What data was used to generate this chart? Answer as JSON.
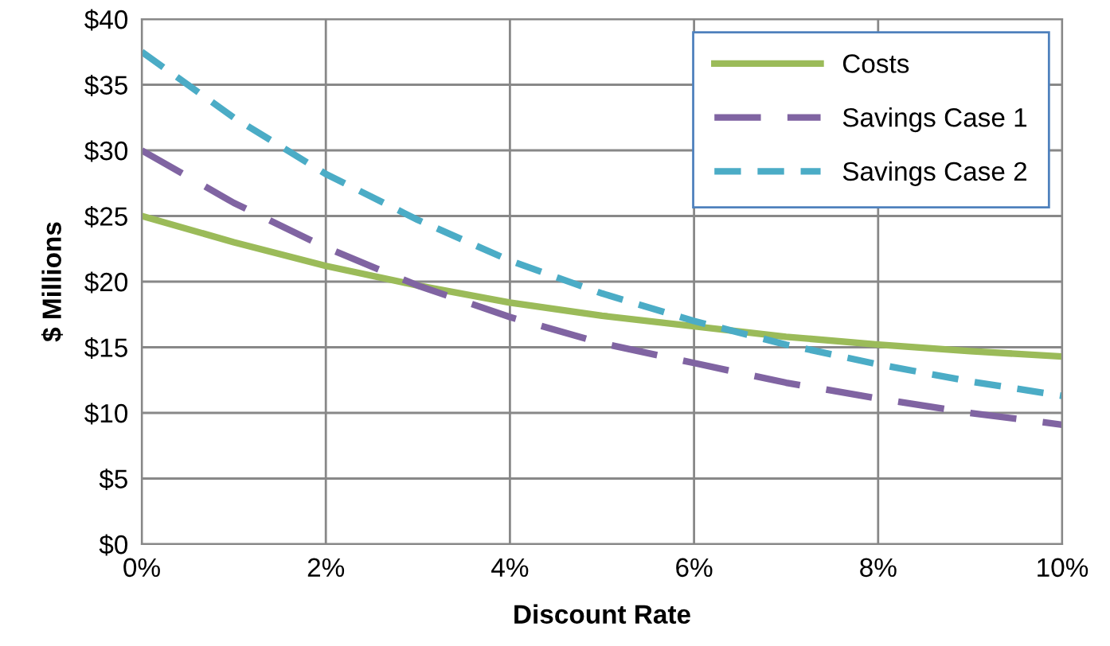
{
  "chart_data": {
    "type": "line",
    "xlabel": "Discount Rate",
    "ylabel": "$ Millions",
    "x": [
      0,
      1,
      2,
      3,
      4,
      5,
      6,
      7,
      8,
      9,
      10
    ],
    "series": [
      {
        "name": "Costs",
        "color": "#9bbb59",
        "line_style": "solid",
        "values": [
          25,
          23,
          21.2,
          19.7,
          18.4,
          17.4,
          16.6,
          15.8,
          15.2,
          14.7,
          14.3
        ]
      },
      {
        "name": "Savings Case 1",
        "color": "#8064a2",
        "line_style": "dashed",
        "values": [
          30,
          26,
          22.6,
          19.7,
          17.3,
          15.3,
          13.8,
          12.3,
          11.1,
          10.0,
          9.1
        ]
      },
      {
        "name": "Savings Case 2",
        "color": "#4bacc6",
        "line_style": "dashed",
        "values": [
          37.5,
          32.5,
          28.2,
          24.7,
          21.6,
          19.1,
          17.0,
          15.2,
          13.7,
          12.4,
          11.3
        ]
      }
    ],
    "xlim": [
      0,
      10
    ],
    "xticks": [
      {
        "value": 0,
        "label": "0%"
      },
      {
        "value": 2,
        "label": "2%"
      },
      {
        "value": 4,
        "label": "4%"
      },
      {
        "value": 6,
        "label": "6%"
      },
      {
        "value": 8,
        "label": "8%"
      },
      {
        "value": 10,
        "label": "10%"
      }
    ],
    "ylim": [
      0,
      40
    ],
    "yticks": [
      {
        "value": 0,
        "label": "$0"
      },
      {
        "value": 5,
        "label": "$5"
      },
      {
        "value": 10,
        "label": "$10"
      },
      {
        "value": 15,
        "label": "$15"
      },
      {
        "value": 20,
        "label": "$20"
      },
      {
        "value": 25,
        "label": "$25"
      },
      {
        "value": 30,
        "label": "$30"
      },
      {
        "value": 35,
        "label": "$35"
      },
      {
        "value": 40,
        "label": "$40"
      }
    ],
    "grid": true,
    "legend": "top right",
    "marker": "none"
  }
}
